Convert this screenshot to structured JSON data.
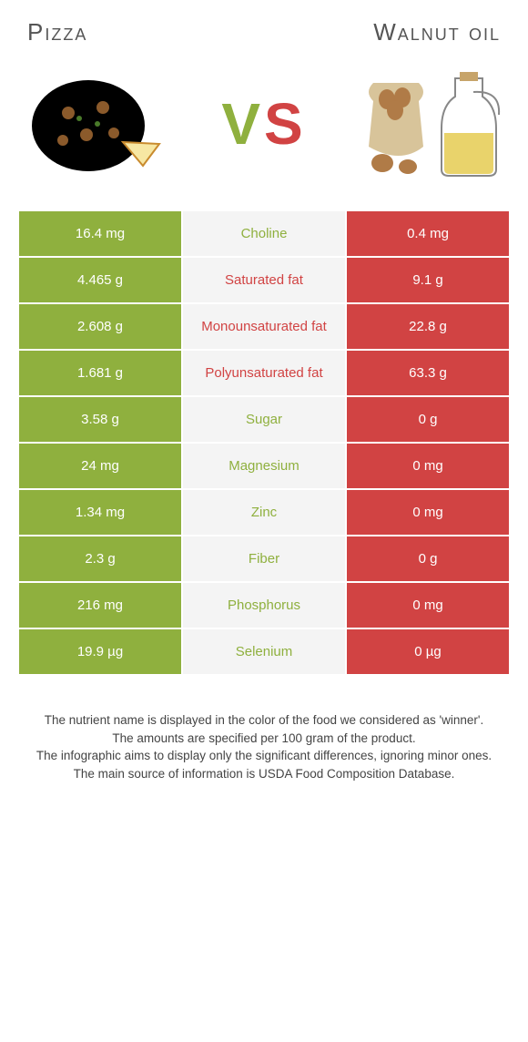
{
  "header": {
    "left_title": "Pizza",
    "right_title": "Walnut oil",
    "vs_v": "V",
    "vs_s": "S"
  },
  "colors": {
    "left": "#8fb03e",
    "right": "#d14343",
    "mid_bg": "#f4f4f4",
    "text_dark": "#555555"
  },
  "table": {
    "rows": [
      {
        "left": "16.4 mg",
        "label": "Choline",
        "right": "0.4 mg",
        "winner": "left"
      },
      {
        "left": "4.465 g",
        "label": "Saturated fat",
        "right": "9.1 g",
        "winner": "right"
      },
      {
        "left": "2.608 g",
        "label": "Monounsaturated fat",
        "right": "22.8 g",
        "winner": "right"
      },
      {
        "left": "1.681 g",
        "label": "Polyunsaturated fat",
        "right": "63.3 g",
        "winner": "right"
      },
      {
        "left": "3.58 g",
        "label": "Sugar",
        "right": "0 g",
        "winner": "left"
      },
      {
        "left": "24 mg",
        "label": "Magnesium",
        "right": "0 mg",
        "winner": "left"
      },
      {
        "left": "1.34 mg",
        "label": "Zinc",
        "right": "0 mg",
        "winner": "left"
      },
      {
        "left": "2.3 g",
        "label": "Fiber",
        "right": "0 g",
        "winner": "left"
      },
      {
        "left": "216 mg",
        "label": "Phosphorus",
        "right": "0 mg",
        "winner": "left"
      },
      {
        "left": "19.9 µg",
        "label": "Selenium",
        "right": "0 µg",
        "winner": "left"
      }
    ]
  },
  "footnote": {
    "line1": "The nutrient name is displayed in the color of the food we considered as 'winner'.",
    "line2": "The amounts are specified per 100 gram of the product.",
    "line3": "The infographic aims to display only the significant differences, ignoring minor ones.",
    "line4": "The main source of information is USDA Food Composition Database."
  }
}
